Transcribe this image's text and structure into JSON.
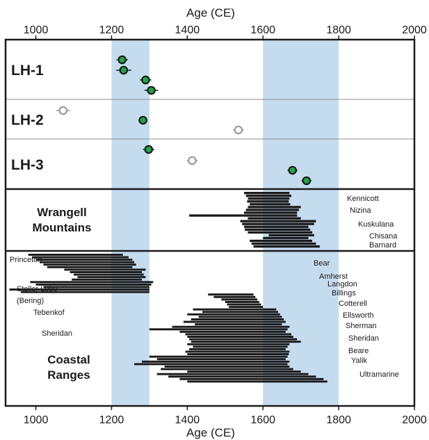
{
  "chart_data": {
    "type": "timeline",
    "x_axis": {
      "label_top": "Age (CE)",
      "label_bottom": "Age (CE)",
      "range": [
        920,
        2000
      ],
      "ticks": [
        1000,
        1200,
        1400,
        1600,
        1800,
        2000
      ],
      "tick_labels": [
        "1000",
        "1200",
        "1400",
        "1600",
        "1800",
        "2000"
      ]
    },
    "highlight_intervals": [
      {
        "start": 1200,
        "end": 1300,
        "color": "#c5dcef"
      },
      {
        "start": 1600,
        "end": 1800,
        "color": "#c5dcef"
      }
    ],
    "colors": {
      "filled_point": "#22a34b",
      "open_point": "#9a9a9a",
      "bar": "#1a1a1a",
      "frame": "#1a1a1a",
      "divider": "#8c8c8c"
    },
    "site_panels": [
      {
        "name": "LH-1",
        "points": [
          {
            "x": 1228,
            "err": 15,
            "filled": true
          },
          {
            "x": 1232,
            "err": 20,
            "filled": true
          },
          {
            "x": 1290,
            "err": 15,
            "filled": true
          },
          {
            "x": 1305,
            "err": 18,
            "filled": true
          }
        ]
      },
      {
        "name": "LH-2",
        "points": [
          {
            "x": 1072,
            "err": 18,
            "filled": false
          },
          {
            "x": 1283,
            "err": 12,
            "filled": true
          },
          {
            "x": 1535,
            "err": 14,
            "filled": false
          }
        ]
      },
      {
        "name": "LH-3",
        "points": [
          {
            "x": 1298,
            "err": 15,
            "filled": true
          },
          {
            "x": 1413,
            "err": 14,
            "filled": false
          },
          {
            "x": 1678,
            "err": 13,
            "filled": true
          },
          {
            "x": 1715,
            "err": 13,
            "filled": true
          }
        ]
      }
    ],
    "glacier_panels": [
      {
        "title_lines": [
          "Wrangell",
          "Mountains"
        ],
        "labels": [
          "Kennicott",
          "Nizina",
          "Kuskulana",
          "Chisana",
          "Barnard"
        ],
        "bars": [
          [
            1550,
            1670
          ],
          [
            1555,
            1675
          ],
          [
            1560,
            1670
          ],
          [
            1558,
            1668
          ],
          [
            1565,
            1672
          ],
          [
            1560,
            1700
          ],
          [
            1555,
            1695
          ],
          [
            1550,
            1690
          ],
          [
            1405,
            1690
          ],
          [
            1560,
            1700
          ],
          [
            1540,
            1740
          ],
          [
            1545,
            1735
          ],
          [
            1550,
            1720
          ],
          [
            1552,
            1725
          ],
          [
            1560,
            1730
          ],
          [
            1615,
            1735
          ],
          [
            1600,
            1720
          ],
          [
            1565,
            1730
          ],
          [
            1570,
            1740
          ],
          [
            1575,
            1750
          ]
        ]
      },
      {
        "title_lines": [
          "Coastal",
          "Ranges"
        ],
        "labels": [
          "Princeton",
          "Steller Lobe",
          "(Bering)",
          "Tebenkof",
          "Sheridan",
          "Bear",
          "Amherst",
          "Langdon",
          "Billings",
          "Cotterell",
          "Ellsworth",
          "Sherman",
          "Sheridan",
          "Beare",
          "Yalik",
          "Ultramarine"
        ],
        "bars": [
          [
            980,
            1230
          ],
          [
            990,
            1245
          ],
          [
            1000,
            1255
          ],
          [
            1010,
            1260
          ],
          [
            1020,
            1265
          ],
          [
            1030,
            1255
          ],
          [
            1075,
            1290
          ],
          [
            1090,
            1280
          ],
          [
            1100,
            1285
          ],
          [
            1110,
            1290
          ],
          [
            1095,
            1280
          ],
          [
            985,
            1310
          ],
          [
            1000,
            1305
          ],
          [
            1020,
            1300
          ],
          [
            930,
            1300
          ],
          [
            960,
            1300
          ],
          [
            1455,
            1575
          ],
          [
            1470,
            1580
          ],
          [
            1490,
            1585
          ],
          [
            1500,
            1590
          ],
          [
            1505,
            1595
          ],
          [
            1510,
            1600
          ],
          [
            1415,
            1635
          ],
          [
            1440,
            1640
          ],
          [
            1400,
            1645
          ],
          [
            1430,
            1650
          ],
          [
            1410,
            1655
          ],
          [
            1390,
            1660
          ],
          [
            1420,
            1650
          ],
          [
            1360,
            1670
          ],
          [
            1300,
            1665
          ],
          [
            1380,
            1660
          ],
          [
            1395,
            1675
          ],
          [
            1400,
            1680
          ],
          [
            1405,
            1690
          ],
          [
            1410,
            1700
          ],
          [
            1400,
            1670
          ],
          [
            1415,
            1665
          ],
          [
            1405,
            1660
          ],
          [
            1395,
            1670
          ],
          [
            1400,
            1668
          ],
          [
            1300,
            1665
          ],
          [
            1320,
            1660
          ],
          [
            1280,
            1670
          ],
          [
            1260,
            1665
          ],
          [
            1340,
            1670
          ],
          [
            1330,
            1680
          ],
          [
            1400,
            1700
          ],
          [
            1320,
            1720
          ],
          [
            1350,
            1740
          ],
          [
            1380,
            1760
          ],
          [
            1400,
            1770
          ]
        ]
      }
    ]
  }
}
